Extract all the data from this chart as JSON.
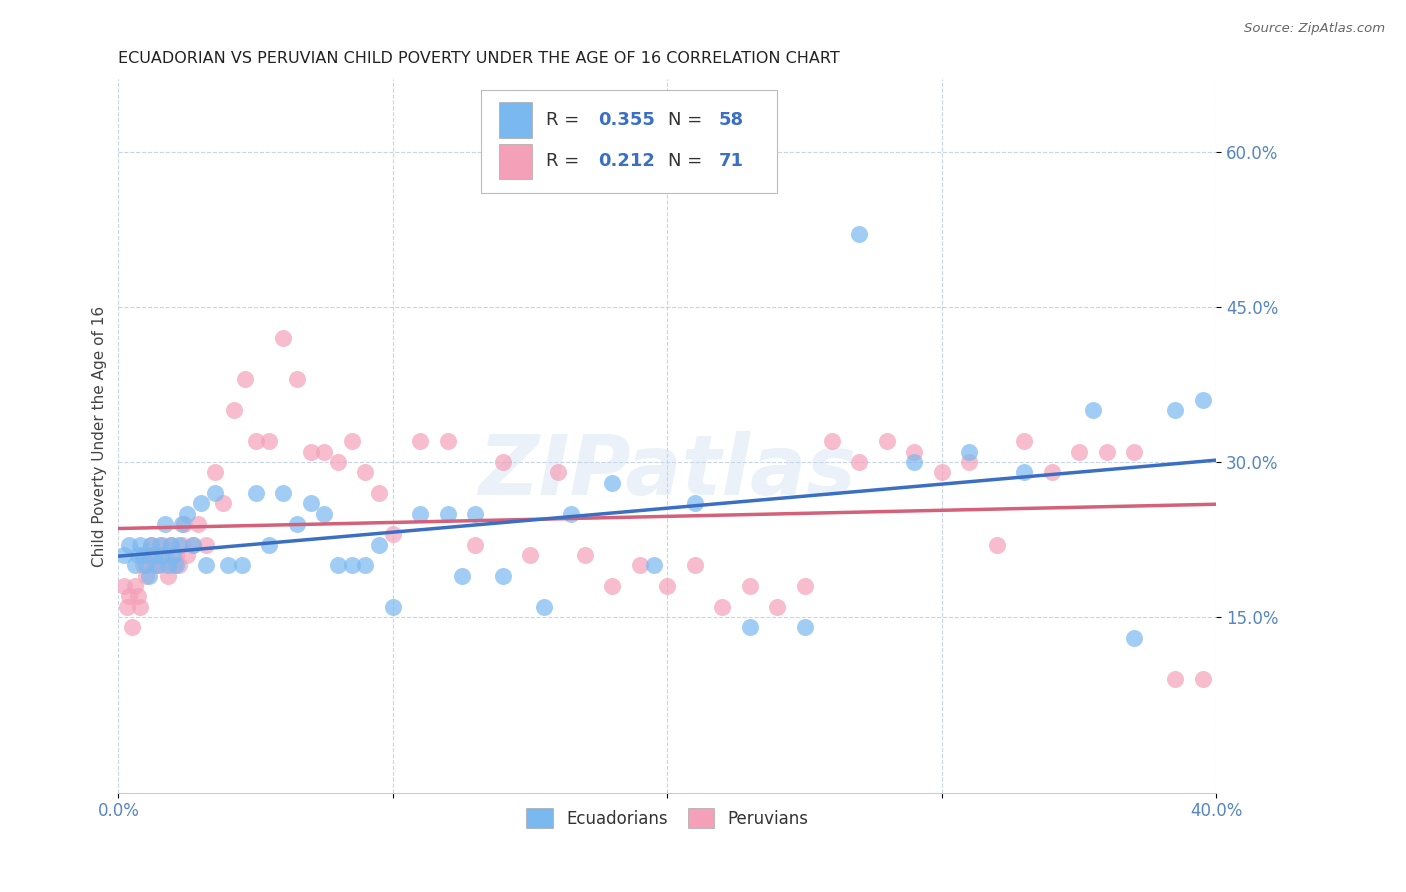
{
  "title": "ECUADORIAN VS PERUVIAN CHILD POVERTY UNDER THE AGE OF 16 CORRELATION CHART",
  "source": "Source: ZipAtlas.com",
  "ylabel": "Child Poverty Under the Age of 16",
  "legend_label1": "Ecuadorians",
  "legend_label2": "Peruvians",
  "R1": "0.355",
  "N1": "58",
  "R2": "0.212",
  "N2": "71",
  "color_ecuador": "#7ab8f0",
  "color_peru": "#f4a0b8",
  "trendline_ecuador": "#3a6fc4",
  "trendline_peru": "#d4607a",
  "background_color": "#ffffff",
  "grid_color": "#c8d4e8",
  "watermark": "ZIPatlas",
  "x_range": [
    0.0,
    0.4
  ],
  "y_range": [
    -0.02,
    0.67
  ],
  "y_tick_vals": [
    0.15,
    0.3,
    0.45,
    0.6
  ],
  "y_tick_labels": [
    "15.0%",
    "30.0%",
    "45.0%",
    "60.0%"
  ],
  "x_tick_vals": [
    0.0,
    0.1,
    0.2,
    0.3,
    0.4
  ],
  "ecuador_x": [
    0.002,
    0.004,
    0.006,
    0.007,
    0.008,
    0.009,
    0.01,
    0.011,
    0.012,
    0.013,
    0.014,
    0.015,
    0.016,
    0.017,
    0.018,
    0.019,
    0.02,
    0.021,
    0.022,
    0.023,
    0.025,
    0.027,
    0.03,
    0.032,
    0.035,
    0.04,
    0.045,
    0.05,
    0.055,
    0.06,
    0.065,
    0.07,
    0.075,
    0.08,
    0.085,
    0.09,
    0.095,
    0.1,
    0.11,
    0.12,
    0.125,
    0.13,
    0.14,
    0.155,
    0.165,
    0.18,
    0.195,
    0.21,
    0.23,
    0.25,
    0.27,
    0.29,
    0.31,
    0.33,
    0.355,
    0.37,
    0.385,
    0.395
  ],
  "ecuador_y": [
    0.21,
    0.22,
    0.2,
    0.21,
    0.22,
    0.21,
    0.2,
    0.19,
    0.22,
    0.21,
    0.2,
    0.22,
    0.21,
    0.24,
    0.2,
    0.22,
    0.21,
    0.2,
    0.22,
    0.24,
    0.25,
    0.22,
    0.26,
    0.2,
    0.27,
    0.2,
    0.2,
    0.27,
    0.22,
    0.27,
    0.24,
    0.26,
    0.25,
    0.2,
    0.2,
    0.2,
    0.22,
    0.16,
    0.25,
    0.25,
    0.19,
    0.25,
    0.19,
    0.16,
    0.25,
    0.28,
    0.2,
    0.26,
    0.14,
    0.14,
    0.52,
    0.3,
    0.31,
    0.29,
    0.35,
    0.13,
    0.35,
    0.36
  ],
  "peru_x": [
    0.002,
    0.003,
    0.004,
    0.005,
    0.006,
    0.007,
    0.008,
    0.009,
    0.01,
    0.011,
    0.012,
    0.013,
    0.014,
    0.015,
    0.016,
    0.017,
    0.018,
    0.019,
    0.02,
    0.021,
    0.022,
    0.023,
    0.024,
    0.025,
    0.027,
    0.029,
    0.032,
    0.035,
    0.038,
    0.042,
    0.046,
    0.05,
    0.055,
    0.06,
    0.065,
    0.07,
    0.075,
    0.08,
    0.085,
    0.09,
    0.095,
    0.1,
    0.11,
    0.12,
    0.13,
    0.14,
    0.15,
    0.16,
    0.17,
    0.18,
    0.19,
    0.2,
    0.21,
    0.22,
    0.23,
    0.24,
    0.25,
    0.26,
    0.27,
    0.28,
    0.29,
    0.3,
    0.31,
    0.32,
    0.33,
    0.34,
    0.35,
    0.36,
    0.37,
    0.385,
    0.395
  ],
  "peru_y": [
    0.18,
    0.16,
    0.17,
    0.14,
    0.18,
    0.17,
    0.16,
    0.2,
    0.19,
    0.21,
    0.22,
    0.2,
    0.21,
    0.2,
    0.22,
    0.21,
    0.19,
    0.22,
    0.2,
    0.21,
    0.2,
    0.22,
    0.24,
    0.21,
    0.22,
    0.24,
    0.22,
    0.29,
    0.26,
    0.35,
    0.38,
    0.32,
    0.32,
    0.42,
    0.38,
    0.31,
    0.31,
    0.3,
    0.32,
    0.29,
    0.27,
    0.23,
    0.32,
    0.32,
    0.22,
    0.3,
    0.21,
    0.29,
    0.21,
    0.18,
    0.2,
    0.18,
    0.2,
    0.16,
    0.18,
    0.16,
    0.18,
    0.32,
    0.3,
    0.32,
    0.31,
    0.29,
    0.3,
    0.22,
    0.32,
    0.29,
    0.31,
    0.31,
    0.31,
    0.09,
    0.09
  ]
}
